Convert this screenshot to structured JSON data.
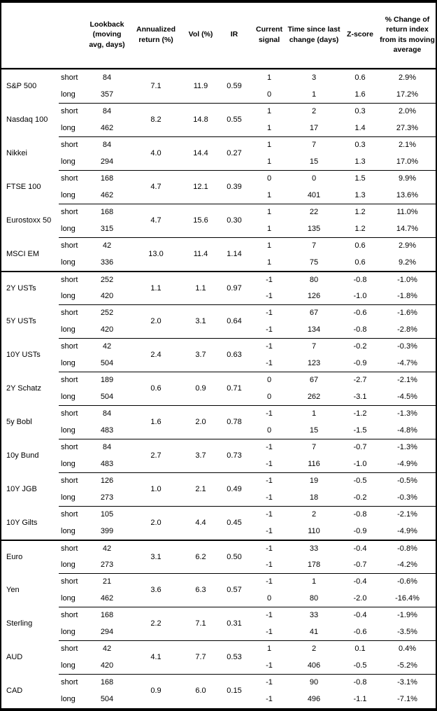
{
  "table": {
    "header": {
      "instrument": "",
      "leg": "",
      "lookback": "Lookback (moving avg, days)",
      "annualized": "Annualized return (%)",
      "vol": "Vol (%)",
      "ir": "IR",
      "signal": "Current signal",
      "time": "Time since last change (days)",
      "zscore": "Z-score",
      "pct_change": "% Change of return index from its moving average"
    },
    "leg_labels": [
      "short",
      "long"
    ],
    "groups": [
      {
        "name": "S&P 500",
        "section_start": false,
        "lookback": [
          "84",
          "357"
        ],
        "annualized": "7.1",
        "vol": "11.9",
        "ir": "0.59",
        "signal": [
          "1",
          "0"
        ],
        "time": [
          "3",
          "1"
        ],
        "zscore": [
          "0.6",
          "1.6"
        ],
        "pct": [
          "2.9%",
          "17.2%"
        ]
      },
      {
        "name": "Nasdaq 100",
        "section_start": false,
        "lookback": [
          "84",
          "462"
        ],
        "annualized": "8.2",
        "vol": "14.8",
        "ir": "0.55",
        "signal": [
          "1",
          "1"
        ],
        "time": [
          "2",
          "17"
        ],
        "zscore": [
          "0.3",
          "1.4"
        ],
        "pct": [
          "2.0%",
          "27.3%"
        ]
      },
      {
        "name": "Nikkei",
        "section_start": false,
        "lookback": [
          "84",
          "294"
        ],
        "annualized": "4.0",
        "vol": "14.4",
        "ir": "0.27",
        "signal": [
          "1",
          "1"
        ],
        "time": [
          "7",
          "15"
        ],
        "zscore": [
          "0.3",
          "1.3"
        ],
        "pct": [
          "2.1%",
          "17.0%"
        ]
      },
      {
        "name": "FTSE 100",
        "section_start": false,
        "lookback": [
          "168",
          "462"
        ],
        "annualized": "4.7",
        "vol": "12.1",
        "ir": "0.39",
        "signal": [
          "0",
          "1"
        ],
        "time": [
          "0",
          "401"
        ],
        "zscore": [
          "1.5",
          "1.3"
        ],
        "pct": [
          "9.9%",
          "13.6%"
        ]
      },
      {
        "name": "Eurostoxx 50",
        "section_start": false,
        "lookback": [
          "168",
          "315"
        ],
        "annualized": "4.7",
        "vol": "15.6",
        "ir": "0.30",
        "signal": [
          "1",
          "1"
        ],
        "time": [
          "22",
          "135"
        ],
        "zscore": [
          "1.2",
          "1.2"
        ],
        "pct": [
          "11.0%",
          "14.7%"
        ]
      },
      {
        "name": "MSCI EM",
        "section_start": false,
        "lookback": [
          "42",
          "336"
        ],
        "annualized": "13.0",
        "vol": "11.4",
        "ir": "1.14",
        "signal": [
          "1",
          "1"
        ],
        "time": [
          "7",
          "75"
        ],
        "zscore": [
          "0.6",
          "0.6"
        ],
        "pct": [
          "2.9%",
          "9.2%"
        ]
      },
      {
        "name": "2Y USTs",
        "section_start": true,
        "lookback": [
          "252",
          "420"
        ],
        "annualized": "1.1",
        "vol": "1.1",
        "ir": "0.97",
        "signal": [
          "-1",
          "-1"
        ],
        "time": [
          "80",
          "126"
        ],
        "zscore": [
          "-0.8",
          "-1.0"
        ],
        "pct": [
          "-1.0%",
          "-1.8%"
        ]
      },
      {
        "name": "5Y USTs",
        "section_start": false,
        "lookback": [
          "252",
          "420"
        ],
        "annualized": "2.0",
        "vol": "3.1",
        "ir": "0.64",
        "signal": [
          "-1",
          "-1"
        ],
        "time": [
          "67",
          "134"
        ],
        "zscore": [
          "-0.6",
          "-0.8"
        ],
        "pct": [
          "-1.6%",
          "-2.8%"
        ]
      },
      {
        "name": "10Y USTs",
        "section_start": false,
        "lookback": [
          "42",
          "504"
        ],
        "annualized": "2.4",
        "vol": "3.7",
        "ir": "0.63",
        "signal": [
          "-1",
          "-1"
        ],
        "time": [
          "7",
          "123"
        ],
        "zscore": [
          "-0.2",
          "-0.9"
        ],
        "pct": [
          "-0.3%",
          "-4.7%"
        ]
      },
      {
        "name": "2Y Schatz",
        "section_start": false,
        "lookback": [
          "189",
          "504"
        ],
        "annualized": "0.6",
        "vol": "0.9",
        "ir": "0.71",
        "signal": [
          "0",
          "0"
        ],
        "time": [
          "67",
          "262"
        ],
        "zscore": [
          "-2.7",
          "-3.1"
        ],
        "pct": [
          "-2.1%",
          "-4.5%"
        ]
      },
      {
        "name": "5y Bobl",
        "section_start": false,
        "lookback": [
          "84",
          "483"
        ],
        "annualized": "1.6",
        "vol": "2.0",
        "ir": "0.78",
        "signal": [
          "-1",
          "0"
        ],
        "time": [
          "1",
          "15"
        ],
        "zscore": [
          "-1.2",
          "-1.5"
        ],
        "pct": [
          "-1.3%",
          "-4.8%"
        ]
      },
      {
        "name": "10y Bund",
        "section_start": false,
        "lookback": [
          "84",
          "483"
        ],
        "annualized": "2.7",
        "vol": "3.7",
        "ir": "0.73",
        "signal": [
          "-1",
          "-1"
        ],
        "time": [
          "7",
          "116"
        ],
        "zscore": [
          "-0.7",
          "-1.0"
        ],
        "pct": [
          "-1.3%",
          "-4.9%"
        ]
      },
      {
        "name": "10Y JGB",
        "section_start": false,
        "lookback": [
          "126",
          "273"
        ],
        "annualized": "1.0",
        "vol": "2.1",
        "ir": "0.49",
        "signal": [
          "-1",
          "-1"
        ],
        "time": [
          "19",
          "18"
        ],
        "zscore": [
          "-0.5",
          "-0.2"
        ],
        "pct": [
          "-0.5%",
          "-0.3%"
        ]
      },
      {
        "name": "10Y Gilts",
        "section_start": false,
        "lookback": [
          "105",
          "399"
        ],
        "annualized": "2.0",
        "vol": "4.4",
        "ir": "0.45",
        "signal": [
          "-1",
          "-1"
        ],
        "time": [
          "2",
          "110"
        ],
        "zscore": [
          "-0.8",
          "-0.9"
        ],
        "pct": [
          "-2.1%",
          "-4.9%"
        ]
      },
      {
        "name": "Euro",
        "section_start": true,
        "lookback": [
          "42",
          "273"
        ],
        "annualized": "3.1",
        "vol": "6.2",
        "ir": "0.50",
        "signal": [
          "-1",
          "-1"
        ],
        "time": [
          "33",
          "178"
        ],
        "zscore": [
          "-0.4",
          "-0.7"
        ],
        "pct": [
          "-0.8%",
          "-4.2%"
        ]
      },
      {
        "name": "Yen",
        "section_start": false,
        "lookback": [
          "21",
          "462"
        ],
        "annualized": "3.6",
        "vol": "6.3",
        "ir": "0.57",
        "signal": [
          "-1",
          "0"
        ],
        "time": [
          "1",
          "80"
        ],
        "zscore": [
          "-0.4",
          "-2.0"
        ],
        "pct": [
          "-0.6%",
          "-16.4%"
        ]
      },
      {
        "name": "Sterling",
        "section_start": false,
        "lookback": [
          "168",
          "294"
        ],
        "annualized": "2.2",
        "vol": "7.1",
        "ir": "0.31",
        "signal": [
          "-1",
          "-1"
        ],
        "time": [
          "33",
          "41"
        ],
        "zscore": [
          "-0.4",
          "-0.6"
        ],
        "pct": [
          "-1.9%",
          "-3.5%"
        ]
      },
      {
        "name": "AUD",
        "section_start": false,
        "lookback": [
          "42",
          "420"
        ],
        "annualized": "4.1",
        "vol": "7.7",
        "ir": "0.53",
        "signal": [
          "1",
          "-1"
        ],
        "time": [
          "2",
          "406"
        ],
        "zscore": [
          "0.1",
          "-0.5"
        ],
        "pct": [
          "0.4%",
          "-5.2%"
        ]
      },
      {
        "name": "CAD",
        "section_start": false,
        "lookback": [
          "168",
          "504"
        ],
        "annualized": "0.9",
        "vol": "6.0",
        "ir": "0.15",
        "signal": [
          "-1",
          "-1"
        ],
        "time": [
          "90",
          "496"
        ],
        "zscore": [
          "-0.8",
          "-1.1"
        ],
        "pct": [
          "-3.1%",
          "-7.1%"
        ]
      }
    ]
  }
}
